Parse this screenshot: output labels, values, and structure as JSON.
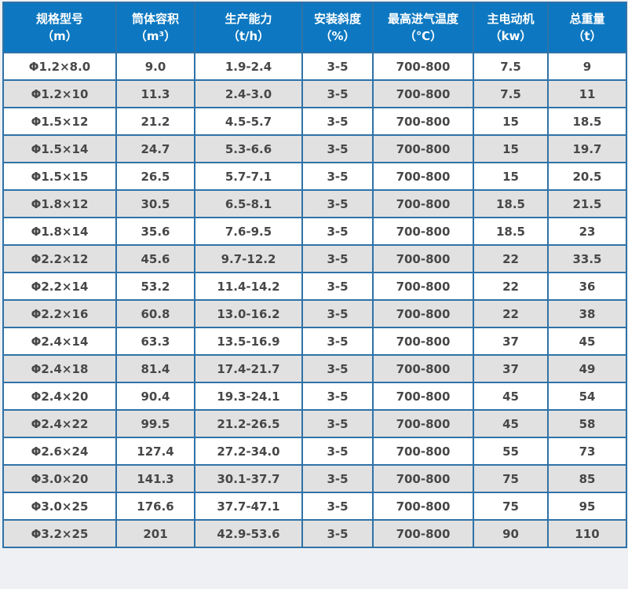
{
  "colors": {
    "header_bg": "#0d78c1",
    "header_text": "#ffffff",
    "border": "#2f72a7",
    "row_alt_bg": "#e1e1e1",
    "row_bg": "#ffffff",
    "cell_text": "#474747",
    "page_bg": "#eef0f3"
  },
  "table": {
    "columns": [
      {
        "label": "规格型号",
        "unit": "（m）"
      },
      {
        "label": "筒体容积",
        "unit": "（m³）"
      },
      {
        "label": "生产能力",
        "unit": "（t/h）"
      },
      {
        "label": "安装斜度",
        "unit": "（%）"
      },
      {
        "label": "最高进气温度",
        "unit": "（℃）"
      },
      {
        "label": "主电动机",
        "unit": "（kw）"
      },
      {
        "label": "总重量",
        "unit": "（t）"
      }
    ],
    "rows": [
      [
        "Φ1.2×8.0",
        "9.0",
        "1.9-2.4",
        "3-5",
        "700-800",
        "7.5",
        "9"
      ],
      [
        "Φ1.2×10",
        "11.3",
        "2.4-3.0",
        "3-5",
        "700-800",
        "7.5",
        "11"
      ],
      [
        "Φ1.5×12",
        "21.2",
        "4.5-5.7",
        "3-5",
        "700-800",
        "15",
        "18.5"
      ],
      [
        "Φ1.5×14",
        "24.7",
        "5.3-6.6",
        "3-5",
        "700-800",
        "15",
        "19.7"
      ],
      [
        "Φ1.5×15",
        "26.5",
        "5.7-7.1",
        "3-5",
        "700-800",
        "15",
        "20.5"
      ],
      [
        "Φ1.8×12",
        "30.5",
        "6.5-8.1",
        "3-5",
        "700-800",
        "18.5",
        "21.5"
      ],
      [
        "Φ1.8×14",
        "35.6",
        "7.6-9.5",
        "3-5",
        "700-800",
        "18.5",
        "23"
      ],
      [
        "Φ2.2×12",
        "45.6",
        "9.7-12.2",
        "3-5",
        "700-800",
        "22",
        "33.5"
      ],
      [
        "Φ2.2×14",
        "53.2",
        "11.4-14.2",
        "3-5",
        "700-800",
        "22",
        "36"
      ],
      [
        "Φ2.2×16",
        "60.8",
        "13.0-16.2",
        "3-5",
        "700-800",
        "22",
        "38"
      ],
      [
        "Φ2.4×14",
        "63.3",
        "13.5-16.9",
        "3-5",
        "700-800",
        "37",
        "45"
      ],
      [
        "Φ2.4×18",
        "81.4",
        "17.4-21.7",
        "3-5",
        "700-800",
        "37",
        "49"
      ],
      [
        "Φ2.4×20",
        "90.4",
        "19.3-24.1",
        "3-5",
        "700-800",
        "45",
        "54"
      ],
      [
        "Φ2.4×22",
        "99.5",
        "21.2-26.5",
        "3-5",
        "700-800",
        "45",
        "58"
      ],
      [
        "Φ2.6×24",
        "127.4",
        "27.2-34.0",
        "3-5",
        "700-800",
        "55",
        "73"
      ],
      [
        "Φ3.0×20",
        "141.3",
        "30.1-37.7",
        "3-5",
        "700-800",
        "75",
        "85"
      ],
      [
        "Φ3.0×25",
        "176.6",
        "37.7-47.1",
        "3-5",
        "700-800",
        "75",
        "95"
      ],
      [
        "Φ3.2×25",
        "201",
        "42.9-53.6",
        "3-5",
        "700-800",
        "90",
        "110"
      ]
    ]
  },
  "chart_data": {
    "type": "table",
    "title": "",
    "columns": [
      "规格型号（m）",
      "筒体容积（m³）",
      "生产能力（t/h）",
      "安装斜度（%）",
      "最高进气温度（℃）",
      "主电动机（kw）",
      "总重量（t）"
    ],
    "rows": [
      [
        "Φ1.2×8.0",
        "9.0",
        "1.9-2.4",
        "3-5",
        "700-800",
        "7.5",
        "9"
      ],
      [
        "Φ1.2×10",
        "11.3",
        "2.4-3.0",
        "3-5",
        "700-800",
        "7.5",
        "11"
      ],
      [
        "Φ1.5×12",
        "21.2",
        "4.5-5.7",
        "3-5",
        "700-800",
        "15",
        "18.5"
      ],
      [
        "Φ1.5×14",
        "24.7",
        "5.3-6.6",
        "3-5",
        "700-800",
        "15",
        "19.7"
      ],
      [
        "Φ1.5×15",
        "26.5",
        "5.7-7.1",
        "3-5",
        "700-800",
        "15",
        "20.5"
      ],
      [
        "Φ1.8×12",
        "30.5",
        "6.5-8.1",
        "3-5",
        "700-800",
        "18.5",
        "21.5"
      ],
      [
        "Φ1.8×14",
        "35.6",
        "7.6-9.5",
        "3-5",
        "700-800",
        "18.5",
        "23"
      ],
      [
        "Φ2.2×12",
        "45.6",
        "9.7-12.2",
        "3-5",
        "700-800",
        "22",
        "33.5"
      ],
      [
        "Φ2.2×14",
        "53.2",
        "11.4-14.2",
        "3-5",
        "700-800",
        "22",
        "36"
      ],
      [
        "Φ2.2×16",
        "60.8",
        "13.0-16.2",
        "3-5",
        "700-800",
        "22",
        "38"
      ],
      [
        "Φ2.4×14",
        "63.3",
        "13.5-16.9",
        "3-5",
        "700-800",
        "37",
        "45"
      ],
      [
        "Φ2.4×18",
        "81.4",
        "17.4-21.7",
        "3-5",
        "700-800",
        "37",
        "49"
      ],
      [
        "Φ2.4×20",
        "90.4",
        "19.3-24.1",
        "3-5",
        "700-800",
        "45",
        "54"
      ],
      [
        "Φ2.4×22",
        "99.5",
        "21.2-26.5",
        "3-5",
        "700-800",
        "45",
        "58"
      ],
      [
        "Φ2.6×24",
        "127.4",
        "27.2-34.0",
        "3-5",
        "700-800",
        "55",
        "73"
      ],
      [
        "Φ3.0×20",
        "141.3",
        "30.1-37.7",
        "3-5",
        "700-800",
        "75",
        "85"
      ],
      [
        "Φ3.0×25",
        "176.6",
        "37.7-47.1",
        "3-5",
        "700-800",
        "75",
        "95"
      ],
      [
        "Φ3.2×25",
        "201",
        "42.9-53.6",
        "3-5",
        "700-800",
        "90",
        "110"
      ]
    ]
  }
}
